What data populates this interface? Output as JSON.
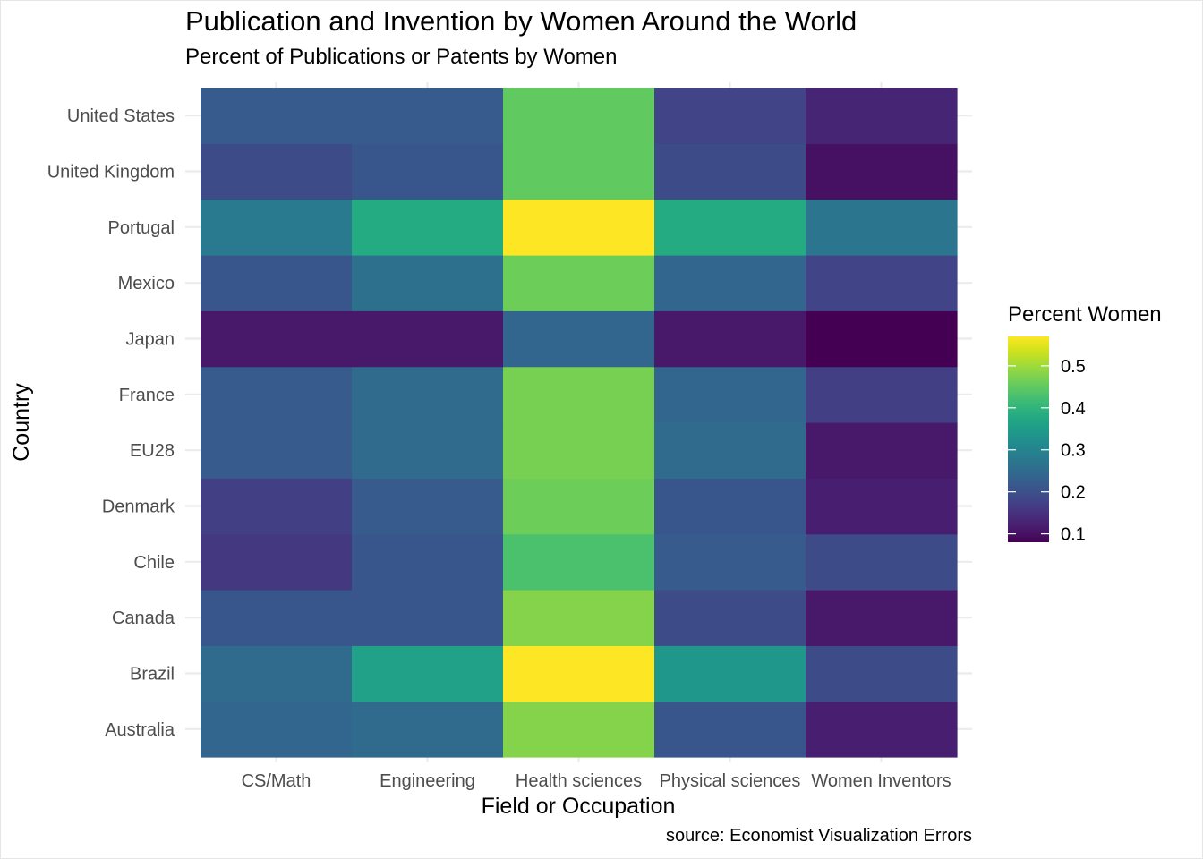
{
  "chart_data": {
    "type": "heatmap",
    "title": "Publication and Invention by Women Around the World",
    "subtitle": "Percent of Publications or Patents by Women",
    "xlabel": "Field or Occupation",
    "ylabel": "Country",
    "caption": "source: Economist Visualization Errors",
    "x_categories": [
      "CS/Math",
      "Engineering",
      "Health sciences",
      "Physical sciences",
      "Women Inventors"
    ],
    "y_categories": [
      "Australia",
      "Brazil",
      "Canada",
      "Chile",
      "Denmark",
      "EU28",
      "France",
      "Japan",
      "Mexico",
      "Portugal",
      "United Kingdom",
      "United States"
    ],
    "values": [
      [
        0.24,
        0.25,
        0.48,
        0.21,
        0.12
      ],
      [
        0.25,
        0.36,
        0.57,
        0.34,
        0.19
      ],
      [
        0.21,
        0.21,
        0.48,
        0.19,
        0.11
      ],
      [
        0.16,
        0.21,
        0.43,
        0.22,
        0.19
      ],
      [
        0.17,
        0.22,
        0.46,
        0.21,
        0.12
      ],
      [
        0.22,
        0.25,
        0.47,
        0.25,
        0.11
      ],
      [
        0.22,
        0.25,
        0.47,
        0.24,
        0.17
      ],
      [
        0.11,
        0.11,
        0.24,
        0.11,
        0.08
      ],
      [
        0.21,
        0.26,
        0.46,
        0.24,
        0.18
      ],
      [
        0.28,
        0.38,
        0.57,
        0.38,
        0.27
      ],
      [
        0.19,
        0.21,
        0.45,
        0.19,
        0.1
      ],
      [
        0.22,
        0.22,
        0.45,
        0.18,
        0.13
      ]
    ],
    "legend": {
      "title": "Percent Women",
      "ticks": [
        "0.1",
        "0.2",
        "0.3",
        "0.4",
        "0.5"
      ],
      "range": [
        0.08,
        0.57
      ],
      "colors": [
        "#440154",
        "#481a6c",
        "#472f7d",
        "#414487",
        "#39568c",
        "#31688e",
        "#2a788e",
        "#23888e",
        "#1f988b",
        "#22a884",
        "#35b779",
        "#54c568",
        "#7ad151",
        "#a5db36",
        "#d2e21b",
        "#fde725"
      ],
      "placement": "right"
    },
    "grid": true
  }
}
